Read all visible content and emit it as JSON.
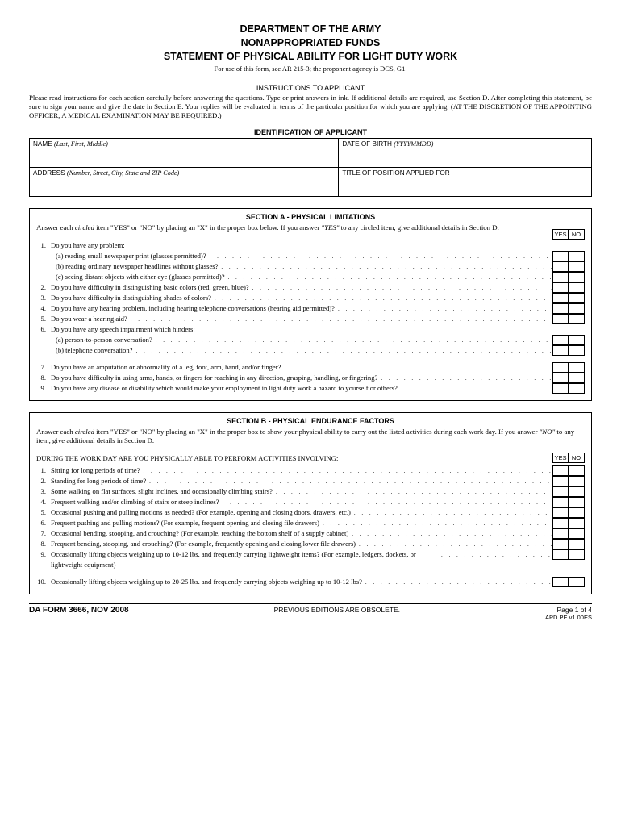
{
  "header": {
    "line1": "DEPARTMENT OF THE ARMY",
    "line2": "NONAPPROPRIATED FUNDS",
    "line3": "STATEMENT OF PHYSICAL ABILITY FOR LIGHT DUTY WORK",
    "use": "For use of this form, see AR 215-3; the proponent agency is DCS, G1."
  },
  "instructions": {
    "title": "INSTRUCTIONS TO APPLICANT",
    "body": "Please read instructions for each section carefully before answering the questions. Type or print answers in ink. If additional details are required, use Section D. After completing this statement, be sure to sign your name and give the date in Section E. Your replies will be evaluated in terms of the particular position for which you are applying. (AT THE DISCRETION OF THE APPOINTING OFFICER, A MEDICAL EXAMINATION MAY BE REQUIRED.)"
  },
  "identification": {
    "title": "IDENTIFICATION OF APPLICANT",
    "name_label": "NAME",
    "name_hint": "(Last, First, Middle)",
    "dob_label": "DATE OF BIRTH",
    "dob_hint": "(YYYYMMDD)",
    "address_label": "ADDRESS",
    "address_hint": "(Number, Street, City, State and ZIP Code)",
    "title_label": "TITLE OF POSITION APPLIED FOR"
  },
  "sectionA": {
    "title": "SECTION A - PHYSICAL LIMITATIONS",
    "instr_pre": "Answer each ",
    "instr_it1": "circled",
    "instr_mid": " item \"YES\" or \"NO\" by placing an \"X\" in the proper box below. If you answer ",
    "instr_it2": "\"YES\"",
    "instr_post": " to any circled item, give additional details in Section D.",
    "yes": "YES",
    "no": "NO",
    "rows": [
      {
        "num": "1.",
        "text": "Do you have any problem:",
        "boxes": false
      },
      {
        "sub": "(a)",
        "text": "reading small newspaper print (glasses permitted)?",
        "boxes": true
      },
      {
        "sub": "(b)",
        "text": "reading ordinary newspaper headlines without glasses?",
        "boxes": true
      },
      {
        "sub": "(c)",
        "text": "seeing distant objects with either eye (glasses permitted)?",
        "boxes": true
      },
      {
        "num": "2.",
        "text": "Do you have difficulty in distinguishing basic colors (red, green, blue)?",
        "boxes": true
      },
      {
        "num": "3.",
        "text": "Do you have difficulty in distinguishing shades of colors?",
        "boxes": true
      },
      {
        "num": "4.",
        "text": "Do you have any hearing problem, including hearing telephone conversations (hearing aid permitted)?",
        "boxes": true
      },
      {
        "num": "5.",
        "text": "Do you wear a hearing aid?",
        "boxes": true
      },
      {
        "num": "6.",
        "text": "Do you have any speech impairment which hinders:",
        "boxes": false
      },
      {
        "sub": "(a)",
        "text": "person-to-person conversation?",
        "boxes": true
      },
      {
        "sub": "(b)",
        "text": "telephone conversation?",
        "boxes": true
      }
    ],
    "rows2": [
      {
        "num": "7.",
        "text": "Do you have an amputation or abnormality of a leg, foot, arm, hand, and/or finger?",
        "boxes": true
      },
      {
        "num": "8.",
        "text": "Do you have difficulty in using arms, hands, or fingers for reaching in any direction, grasping, handling, or fingering?",
        "boxes": true
      },
      {
        "num": "9.",
        "text": "Do you have any disease or disability which would make your employment in light duty work a hazard to yourself or others?",
        "boxes": true
      }
    ]
  },
  "sectionB": {
    "title": "SECTION B - PHYSICAL ENDURANCE FACTORS",
    "instr_pre": "Answer each ",
    "instr_it1": "circled",
    "instr_mid": " item \"YES\" or \"NO\" by placing an \"X\" in the proper box to show your physical ability to carry out the listed activities during each work day. If you answer ",
    "instr_it2": "\"NO\"",
    "instr_post": " to any item, give additional details in Section D.",
    "lead": "DURING THE WORK DAY ARE YOU PHYSICALLY ABLE TO PERFORM ACTIVITIES INVOLVING:",
    "yes": "YES",
    "no": "NO",
    "rows": [
      {
        "num": "1.",
        "text": "Sitting for long periods of time?",
        "boxes": true
      },
      {
        "num": "2.",
        "text": "Standing for long periods of time?",
        "boxes": true
      },
      {
        "num": "3.",
        "text": "Some walking on flat surfaces, slight inclines, and occasionally climbing stairs?",
        "boxes": true
      },
      {
        "num": "4.",
        "text": "Frequent walking and/or climbing of stairs or steep inclines?",
        "boxes": true
      },
      {
        "num": "5.",
        "text": "Occasional pushing and pulling motions as needed? (For example, opening and closing doors, drawers, etc.)",
        "boxes": true
      },
      {
        "num": "6.",
        "text": "Frequent pushing and pulling motions? (For example, frequent opening and closing file drawers)",
        "boxes": true
      },
      {
        "num": "7.",
        "text": "Occasional bending, stooping, and crouching? (For example, reaching the bottom shelf of a supply cabinet)",
        "boxes": true
      },
      {
        "num": "8.",
        "text": "Frequent bending, stooping, and crouching? (For example, frequently opening and closing lower file drawers)",
        "boxes": true
      },
      {
        "num": "9.",
        "text": "Occasionally lifting objects weighing up to 10-12 lbs. and frequently carrying lightweight items? (For example, ledgers, dockets, or lightweight equipment)",
        "boxes": true,
        "multiline": true
      }
    ],
    "rows2": [
      {
        "num": "10.",
        "text": "Occasionally lifting objects weighing up to 20-25 lbs. and frequently carrying objects weighing up to 10-12 lbs?",
        "boxes": true
      }
    ]
  },
  "footer": {
    "form": "DA FORM 3666, NOV 2008",
    "mid": "PREVIOUS EDITIONS ARE OBSOLETE.",
    "page": "Page 1 of 4",
    "apd": "APD PE v1.00ES"
  }
}
